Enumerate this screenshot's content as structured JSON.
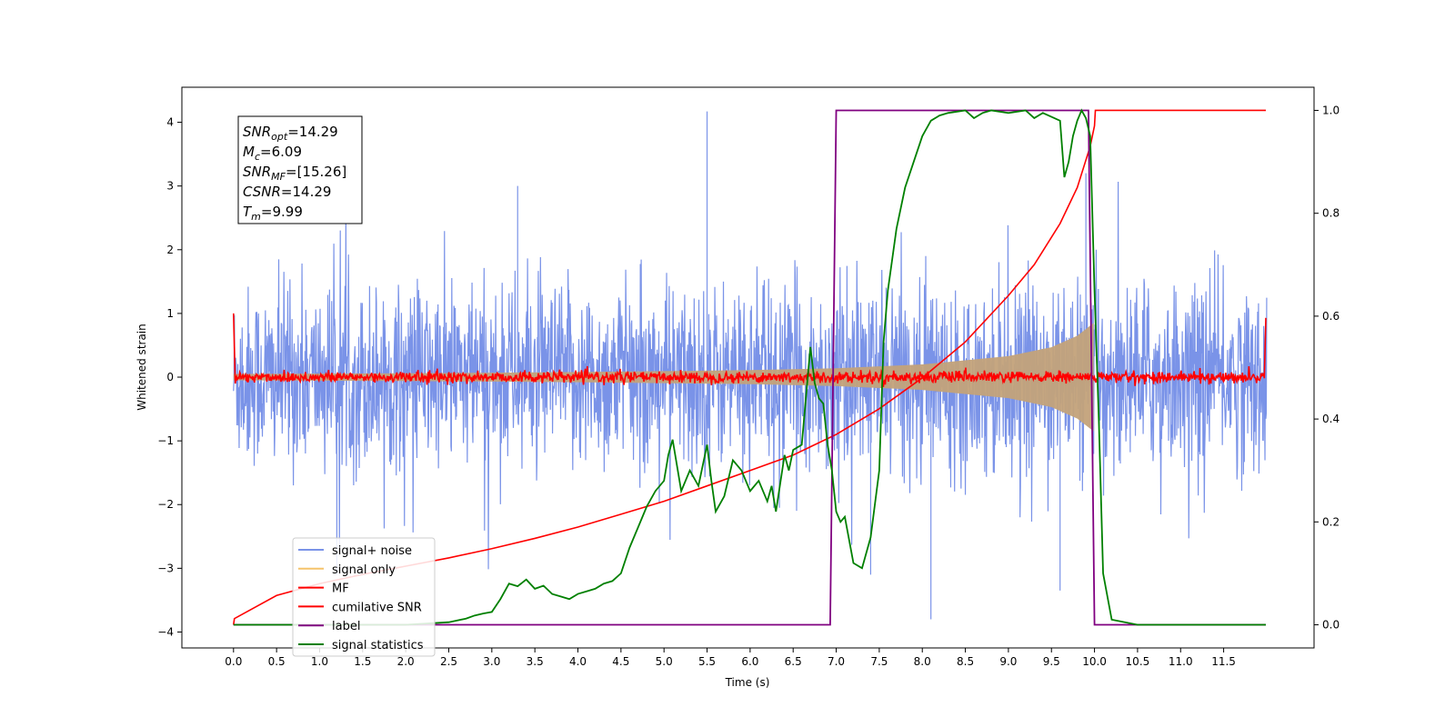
{
  "chart_data": {
    "type": "line",
    "xlabel": "Time (s)",
    "ylabel": "Whitened strain",
    "x_ticks": [
      "0.0",
      "0.5",
      "1.0",
      "1.5",
      "2.0",
      "2.5",
      "3.0",
      "3.5",
      "4.0",
      "4.5",
      "5.0",
      "5.5",
      "6.0",
      "6.5",
      "7.0",
      "7.5",
      "8.0",
      "8.5",
      "9.0",
      "9.5",
      "10.0",
      "10.5",
      "11.0",
      "11.5"
    ],
    "y_ticks_left": [
      "4",
      "3",
      "2",
      "1",
      "0",
      "−1",
      "−2",
      "−3",
      "−4"
    ],
    "y_ticks_right": [
      "1.0",
      "0.8",
      "0.6",
      "0.4",
      "0.2",
      "0.0"
    ],
    "xlim": [
      -0.6,
      12.55
    ],
    "ylim_left": [
      -4.25,
      4.55
    ],
    "ylim_right": [
      -0.045,
      1.045
    ],
    "annotation": [
      {
        "base": "SNR",
        "sub": "opt",
        "value": "=14.29"
      },
      {
        "base": "M",
        "sub": "c",
        "value": "=6.09"
      },
      {
        "base": "SNR",
        "sub": "MF",
        "value": "=[15.26]"
      },
      {
        "base": "CSNR",
        "sub": "",
        "value": "=14.29"
      },
      {
        "base": "T",
        "sub": "m",
        "value": "=9.99"
      }
    ],
    "series": [
      {
        "name": "signal+ noise",
        "color": "#4169e1",
        "axis": "left",
        "description": "whitened noise, envelope approx -2..2 with spikes to 4.2 / -3.8",
        "x_range": [
          0.0,
          12.0
        ],
        "typical_amplitude": 0.7
      },
      {
        "name": "signal only",
        "color": "#f5b041",
        "axis": "left",
        "description": "chirp with growing envelope",
        "chirp": {
          "x": [
            0,
            2,
            4,
            6,
            7,
            8,
            9,
            9.5,
            9.8,
            9.99
          ],
          "envelope": [
            0.05,
            0.06,
            0.08,
            0.11,
            0.14,
            0.2,
            0.33,
            0.47,
            0.65,
            0.85
          ]
        }
      },
      {
        "name": "MF",
        "color": "#ff0000",
        "axis": "left",
        "description": "matched filter output, approx 0 with small noise; 1.0 at x=0 and 0.93 at x=12",
        "x_range": [
          0.0,
          12.0
        ]
      },
      {
        "name": "cumilative SNR",
        "color": "#ff0000",
        "axis": "right",
        "x": [
          0,
          0.01,
          0.5,
          1,
          1.5,
          2,
          2.5,
          3,
          3.5,
          4,
          4.5,
          5,
          5.5,
          6,
          6.5,
          7,
          7.5,
          8,
          8.5,
          9,
          9.3,
          9.6,
          9.8,
          9.95,
          10.0,
          10.01,
          11.99
        ],
        "y": [
          0.0,
          0.012,
          0.057,
          0.08,
          0.098,
          0.114,
          0.13,
          0.148,
          0.168,
          0.19,
          0.215,
          0.24,
          0.27,
          0.3,
          0.33,
          0.37,
          0.42,
          0.48,
          0.55,
          0.64,
          0.7,
          0.78,
          0.85,
          0.93,
          0.97,
          1.0,
          1.0
        ]
      },
      {
        "name": "label",
        "color": "#800080",
        "axis": "right",
        "x": [
          0,
          6.93,
          7.0,
          9.93,
          10.0,
          11.99
        ],
        "y": [
          0,
          0,
          1,
          1,
          0,
          0
        ]
      },
      {
        "name": "signal statistics",
        "color": "#008000",
        "axis": "right",
        "x": [
          0,
          0.5,
          1,
          1.5,
          2,
          2.5,
          2.7,
          2.8,
          2.9,
          3.0,
          3.1,
          3.2,
          3.3,
          3.4,
          3.5,
          3.6,
          3.7,
          3.8,
          3.9,
          4.0,
          4.1,
          4.2,
          4.3,
          4.4,
          4.5,
          4.6,
          4.7,
          4.8,
          4.9,
          5.0,
          5.05,
          5.1,
          5.15,
          5.2,
          5.3,
          5.4,
          5.5,
          5.55,
          5.6,
          5.7,
          5.8,
          5.9,
          6.0,
          6.1,
          6.2,
          6.25,
          6.3,
          6.4,
          6.45,
          6.5,
          6.6,
          6.7,
          6.75,
          6.8,
          6.85,
          6.9,
          6.95,
          7.0,
          7.05,
          7.1,
          7.2,
          7.3,
          7.4,
          7.5,
          7.55,
          7.6,
          7.7,
          7.8,
          7.9,
          8.0,
          8.1,
          8.2,
          8.3,
          8.5,
          8.6,
          8.7,
          8.8,
          9.0,
          9.2,
          9.3,
          9.4,
          9.6,
          9.65,
          9.7,
          9.75,
          9.8,
          9.85,
          9.9,
          9.95,
          10.0,
          10.05,
          10.1,
          10.2,
          10.5,
          11.0,
          11.5,
          11.99
        ],
        "y": [
          0,
          0,
          0,
          0,
          0,
          0.005,
          0.012,
          0.018,
          0.022,
          0.025,
          0.05,
          0.08,
          0.075,
          0.088,
          0.07,
          0.076,
          0.06,
          0.055,
          0.05,
          0.06,
          0.065,
          0.07,
          0.08,
          0.085,
          0.1,
          0.15,
          0.19,
          0.23,
          0.26,
          0.28,
          0.33,
          0.36,
          0.31,
          0.26,
          0.3,
          0.27,
          0.35,
          0.28,
          0.22,
          0.25,
          0.32,
          0.3,
          0.26,
          0.28,
          0.24,
          0.27,
          0.22,
          0.33,
          0.3,
          0.34,
          0.35,
          0.54,
          0.47,
          0.44,
          0.43,
          0.35,
          0.3,
          0.22,
          0.2,
          0.21,
          0.12,
          0.11,
          0.17,
          0.3,
          0.55,
          0.65,
          0.77,
          0.85,
          0.9,
          0.95,
          0.98,
          0.99,
          0.995,
          1.0,
          0.985,
          0.995,
          1.0,
          0.995,
          1.0,
          0.985,
          0.995,
          0.98,
          0.87,
          0.9,
          0.95,
          0.98,
          1.0,
          0.985,
          0.95,
          0.65,
          0.4,
          0.1,
          0.01,
          0,
          0,
          0,
          0
        ]
      }
    ],
    "legend": {
      "placement": "lower-left",
      "entries": [
        {
          "label": "signal+ noise",
          "color": "#7a93e8"
        },
        {
          "label": "signal only",
          "color": "#f5c36b"
        },
        {
          "label": "MF",
          "color": "#ff0000"
        },
        {
          "label": "cumilative SNR",
          "color": "#ff0000"
        },
        {
          "label": "label",
          "color": "#800080"
        },
        {
          "label": "signal statistics",
          "color": "#008000"
        }
      ]
    },
    "grid": false
  }
}
